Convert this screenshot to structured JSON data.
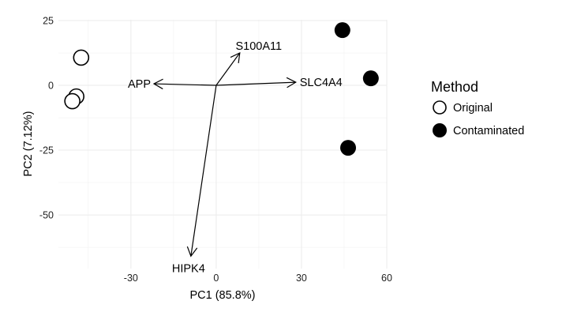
{
  "chart_data": {
    "type": "scatter",
    "title": "",
    "xlabel": "PC1 (85.8%)",
    "ylabel": "PC2 (7.12%)",
    "xlim": [
      -55.5,
      60
    ],
    "ylim": [
      -70.7,
      25
    ],
    "xticks": [
      -30,
      0,
      30,
      60
    ],
    "yticks": [
      25,
      0,
      -25,
      -50
    ],
    "xminor": [
      -45,
      -15,
      15,
      45
    ],
    "yminor": [
      12.5,
      -12.5,
      -37.5,
      -62.5
    ],
    "grid": true,
    "legend": {
      "title": "Method",
      "position": "right",
      "entries": [
        "Original",
        "Contaminated"
      ]
    },
    "series": [
      {
        "name": "Original",
        "fill": "#ffffff",
        "points": [
          [
            -47.5,
            10.7
          ],
          [
            -49.2,
            -4.3
          ],
          [
            -50.6,
            -6.1
          ]
        ]
      },
      {
        "name": "Contaminated",
        "fill": "#000000",
        "points": [
          [
            44.4,
            21.3
          ],
          [
            54.4,
            2.7
          ],
          [
            46.4,
            -24.1
          ]
        ]
      }
    ],
    "loadings": [
      {
        "label": "APP",
        "x": -21.9,
        "y": 0.6
      },
      {
        "label": "S100A11",
        "x": 8.3,
        "y": 12.5
      },
      {
        "label": "SLC4A4",
        "x": 28,
        "y": 1.2
      },
      {
        "label": "HIPK4",
        "x": -8.9,
        "y": -65.9
      }
    ]
  }
}
